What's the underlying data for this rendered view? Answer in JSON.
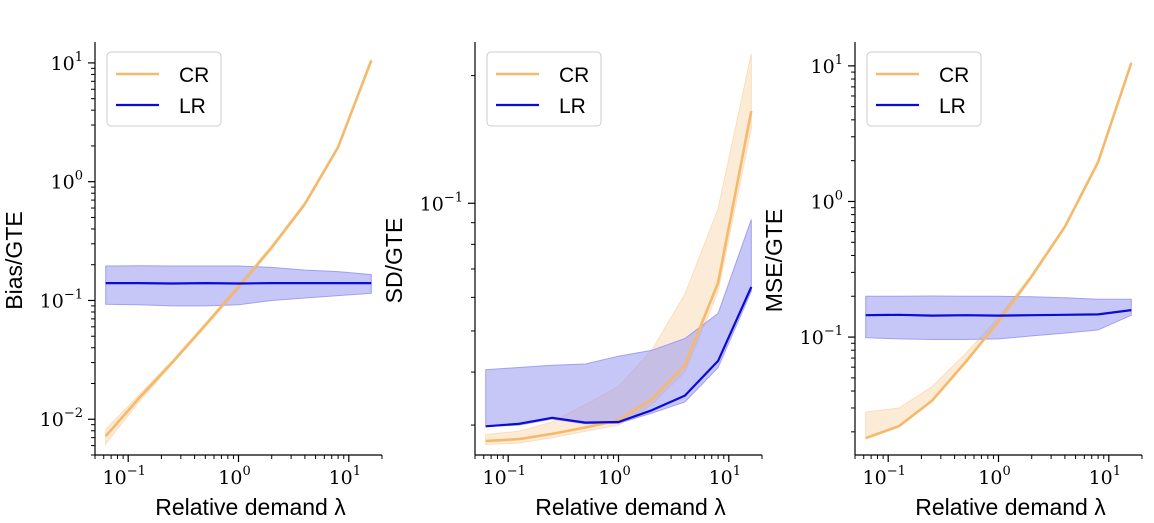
{
  "colors": {
    "CR": "#f5b96b",
    "LR": "#0b0bd6",
    "LR_band": "#9999f0",
    "CR_band": "#f9dcb6"
  },
  "chart_data": [
    {
      "type": "line",
      "xlabel": "Relative demand λ",
      "ylabel": "Bias/GTE",
      "xscale": "log",
      "yscale": "log",
      "xlim": [
        0.05,
        20
      ],
      "ylim": [
        0.005,
        15
      ],
      "xticks": [
        {
          "base": "10",
          "exp": "−1",
          "value": 0.1
        },
        {
          "base": "10",
          "exp": "0",
          "value": 1
        },
        {
          "base": "10",
          "exp": "1",
          "value": 10
        }
      ],
      "yticks": [
        {
          "base": "10",
          "exp": "−2",
          "value": 0.01
        },
        {
          "base": "10",
          "exp": "−1",
          "value": 0.1
        },
        {
          "base": "10",
          "exp": "0",
          "value": 1
        },
        {
          "base": "10",
          "exp": "1",
          "value": 10
        }
      ],
      "legend": "top-left",
      "x": [
        0.0625,
        0.125,
        0.25,
        0.5,
        1,
        2,
        4,
        8,
        16
      ],
      "series": [
        {
          "name": "CR",
          "values": [
            0.0072,
            0.015,
            0.03,
            0.062,
            0.13,
            0.28,
            0.65,
            1.95,
            10.5
          ],
          "band_lower": [
            0.0062,
            0.014,
            0.029,
            0.06,
            0.125,
            0.27,
            0.63,
            1.9,
            10.3
          ],
          "band_upper": [
            0.0082,
            0.016,
            0.031,
            0.064,
            0.135,
            0.29,
            0.67,
            2.0,
            10.7
          ]
        },
        {
          "name": "LR",
          "values": [
            0.14,
            0.14,
            0.139,
            0.14,
            0.139,
            0.14,
            0.14,
            0.14,
            0.14
          ],
          "band_lower": [
            0.093,
            0.092,
            0.09,
            0.09,
            0.092,
            0.1,
            0.105,
            0.11,
            0.115
          ],
          "band_upper": [
            0.195,
            0.196,
            0.195,
            0.195,
            0.195,
            0.19,
            0.18,
            0.175,
            0.165
          ]
        }
      ]
    },
    {
      "type": "line",
      "xlabel": "Relative demand λ",
      "ylabel": "SD/GTE",
      "xscale": "log",
      "yscale": "log",
      "xlim": [
        0.05,
        20
      ],
      "ylim": [
        0.0255,
        0.24
      ],
      "xticks": [
        {
          "base": "10",
          "exp": "−1",
          "value": 0.1
        },
        {
          "base": "10",
          "exp": "0",
          "value": 1
        },
        {
          "base": "10",
          "exp": "1",
          "value": 10
        }
      ],
      "yticks": [
        {
          "base": "10",
          "exp": "−1",
          "value": 0.1
        }
      ],
      "legend": "top-left",
      "x": [
        0.0625,
        0.125,
        0.25,
        0.5,
        1,
        2,
        4,
        8,
        16
      ],
      "series": [
        {
          "name": "CR",
          "values": [
            0.0275,
            0.0278,
            0.0286,
            0.0296,
            0.0308,
            0.0345,
            0.0415,
            0.065,
            0.165
          ],
          "band_lower": [
            0.027,
            0.0272,
            0.028,
            0.029,
            0.03,
            0.0335,
            0.04,
            0.062,
            0.15
          ],
          "band_upper": [
            0.0285,
            0.029,
            0.0305,
            0.0335,
            0.037,
            0.045,
            0.061,
            0.097,
            0.225
          ]
        },
        {
          "name": "LR",
          "values": [
            0.0298,
            0.0302,
            0.0312,
            0.0304,
            0.0305,
            0.0325,
            0.0352,
            0.0425,
            0.0635
          ],
          "band_lower": [
            0.0298,
            0.03,
            0.031,
            0.0302,
            0.0303,
            0.032,
            0.034,
            0.041,
            0.062
          ],
          "band_upper": [
            0.0405,
            0.041,
            0.0415,
            0.0418,
            0.0436,
            0.045,
            0.048,
            0.055,
            0.0915
          ]
        }
      ]
    },
    {
      "type": "line",
      "xlabel": "Relative demand λ",
      "ylabel": "MSE/GTE",
      "xscale": "log",
      "yscale": "log",
      "xlim": [
        0.05,
        20
      ],
      "ylim": [
        0.0135,
        15
      ],
      "xticks": [
        {
          "base": "10",
          "exp": "−1",
          "value": 0.1
        },
        {
          "base": "10",
          "exp": "0",
          "value": 1
        },
        {
          "base": "10",
          "exp": "1",
          "value": 10
        }
      ],
      "yticks": [
        {
          "base": "10",
          "exp": "−1",
          "value": 0.1
        },
        {
          "base": "10",
          "exp": "0",
          "value": 1
        },
        {
          "base": "10",
          "exp": "1",
          "value": 10
        }
      ],
      "legend": "top-left",
      "x": [
        0.0625,
        0.125,
        0.25,
        0.5,
        1,
        2,
        4,
        8,
        16
      ],
      "series": [
        {
          "name": "CR",
          "values": [
            0.018,
            0.022,
            0.034,
            0.065,
            0.13,
            0.28,
            0.65,
            1.95,
            10.5
          ],
          "band_lower": [
            0.018,
            0.022,
            0.034,
            0.065,
            0.13,
            0.28,
            0.65,
            1.95,
            10.5
          ],
          "band_upper": [
            0.028,
            0.03,
            0.043,
            0.075,
            0.14,
            0.29,
            0.67,
            2.0,
            10.7
          ]
        },
        {
          "name": "LR",
          "values": [
            0.145,
            0.146,
            0.144,
            0.145,
            0.144,
            0.145,
            0.146,
            0.147,
            0.158
          ],
          "band_lower": [
            0.099,
            0.097,
            0.096,
            0.096,
            0.097,
            0.102,
            0.107,
            0.113,
            0.145
          ],
          "band_upper": [
            0.2,
            0.2,
            0.201,
            0.2,
            0.2,
            0.198,
            0.195,
            0.19,
            0.19
          ]
        }
      ]
    }
  ]
}
